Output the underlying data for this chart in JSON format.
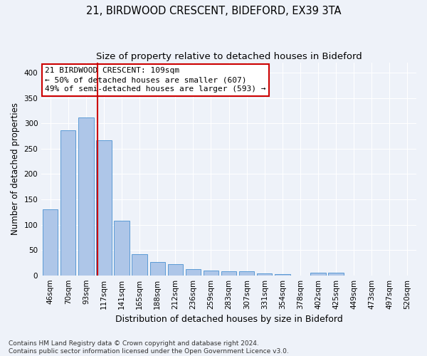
{
  "title1": "21, BIRDWOOD CRESCENT, BIDEFORD, EX39 3TA",
  "title2": "Size of property relative to detached houses in Bideford",
  "xlabel": "Distribution of detached houses by size in Bideford",
  "ylabel": "Number of detached properties",
  "categories": [
    "46sqm",
    "70sqm",
    "93sqm",
    "117sqm",
    "141sqm",
    "165sqm",
    "188sqm",
    "212sqm",
    "236sqm",
    "259sqm",
    "283sqm",
    "307sqm",
    "331sqm",
    "354sqm",
    "378sqm",
    "402sqm",
    "425sqm",
    "449sqm",
    "473sqm",
    "497sqm",
    "520sqm"
  ],
  "values": [
    130,
    287,
    312,
    267,
    108,
    42,
    26,
    22,
    12,
    9,
    8,
    8,
    4,
    3,
    0,
    5,
    5,
    0,
    0,
    0,
    0
  ],
  "bar_color": "#aec6e8",
  "bar_edge_color": "#5b9bd5",
  "bar_width": 0.85,
  "vline_x": 2.65,
  "vline_color": "#cc0000",
  "annotation_line1": "21 BIRDWOOD CRESCENT: 109sqm",
  "annotation_line2": "← 50% of detached houses are smaller (607)",
  "annotation_line3": "49% of semi-detached houses are larger (593) →",
  "annotation_box_color": "#ffffff",
  "annotation_box_edge": "#cc0000",
  "ylim": [
    0,
    420
  ],
  "yticks": [
    0,
    50,
    100,
    150,
    200,
    250,
    300,
    350,
    400
  ],
  "background_color": "#eef2f9",
  "grid_color": "#ffffff",
  "footnote": "Contains HM Land Registry data © Crown copyright and database right 2024.\nContains public sector information licensed under the Open Government Licence v3.0.",
  "title1_fontsize": 10.5,
  "title2_fontsize": 9.5,
  "xlabel_fontsize": 9,
  "ylabel_fontsize": 8.5,
  "tick_fontsize": 7.5,
  "annot_fontsize": 8,
  "footnote_fontsize": 6.5
}
